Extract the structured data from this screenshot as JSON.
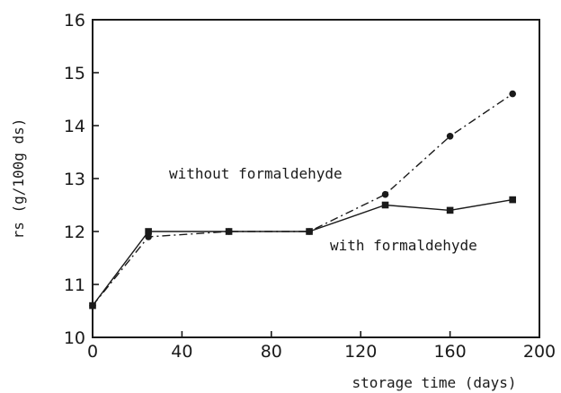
{
  "chart_data": {
    "type": "line",
    "xlabel": "storage time (days)",
    "ylabel": "rs (g/100g ds)",
    "xlim": [
      0,
      200
    ],
    "ylim": [
      10,
      16
    ],
    "xticks": [
      0,
      40,
      80,
      120,
      160,
      200
    ],
    "yticks": [
      10,
      11,
      12,
      13,
      14,
      15,
      16
    ],
    "grid": false,
    "series": [
      {
        "name": "without formaldehyde",
        "marker": "circle",
        "line": "dash-dot",
        "x": [
          0,
          25,
          61,
          97,
          131,
          160,
          188
        ],
        "y": [
          10.6,
          11.9,
          12.0,
          12.0,
          12.7,
          13.8,
          14.6
        ]
      },
      {
        "name": "with formaldehyde",
        "marker": "square",
        "line": "solid",
        "x": [
          0,
          25,
          61,
          97,
          131,
          160,
          188
        ],
        "y": [
          10.6,
          12.0,
          12.0,
          12.0,
          12.5,
          12.4,
          12.6
        ]
      }
    ],
    "annotations": [
      {
        "text": "without formaldehyde",
        "series": 0
      },
      {
        "text": "with formaldehyde",
        "series": 1
      }
    ],
    "colors": {
      "ink": "#1a1a1a",
      "background": "#ffffff"
    }
  }
}
